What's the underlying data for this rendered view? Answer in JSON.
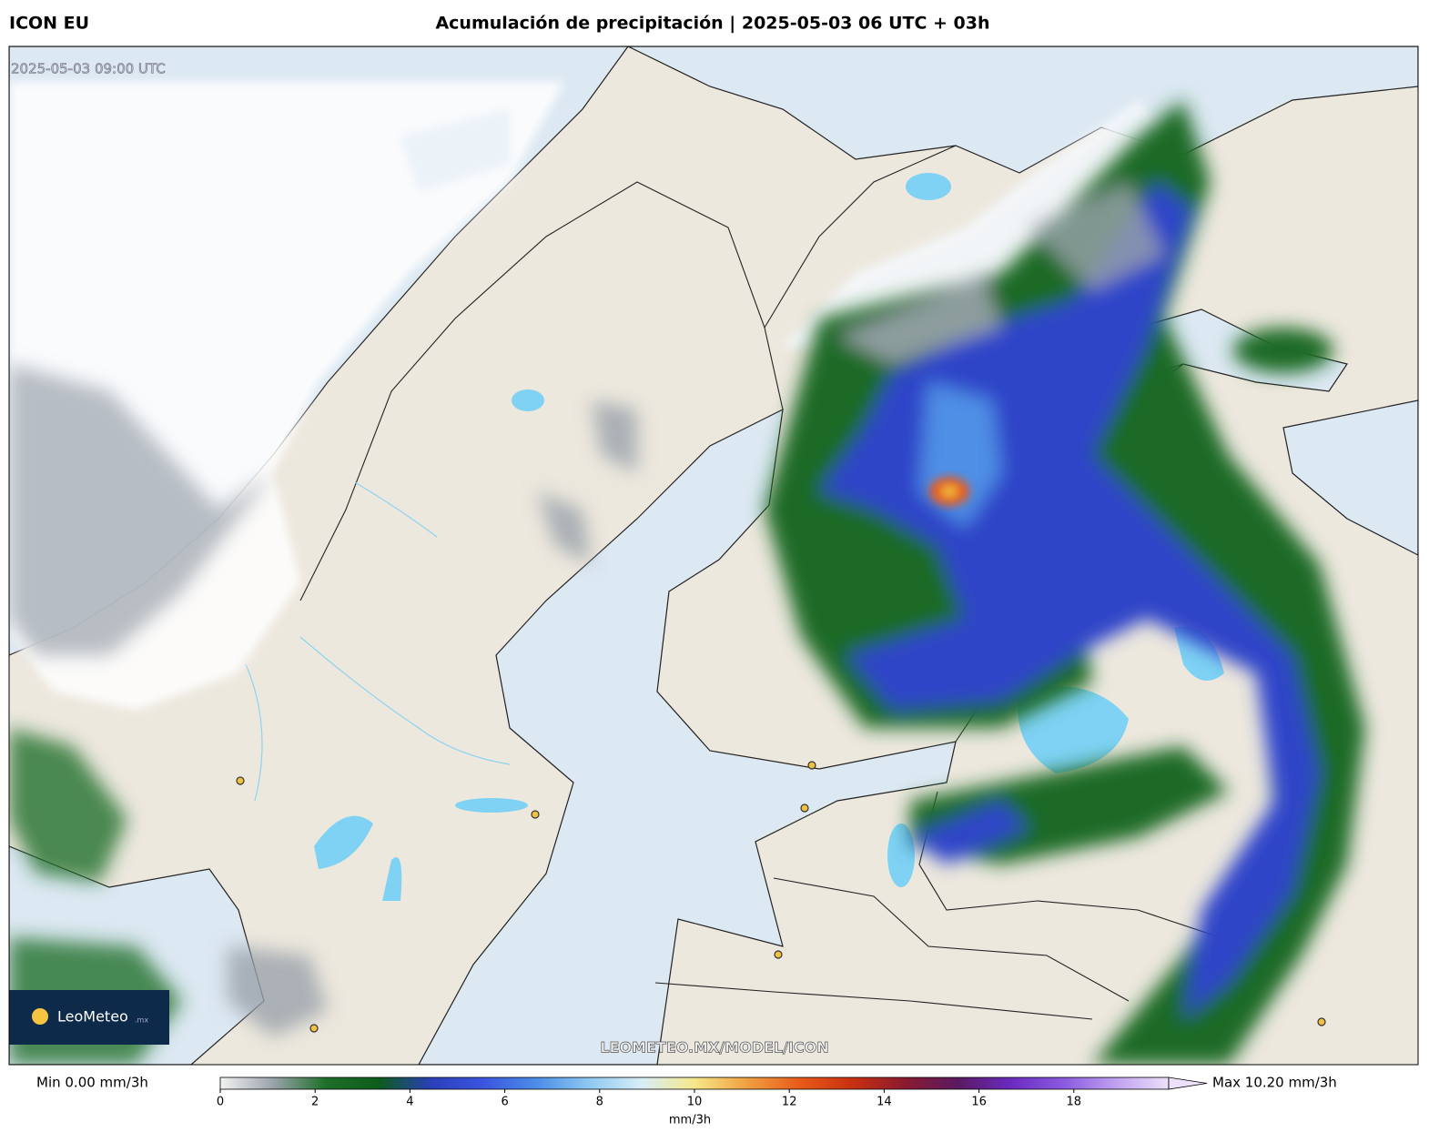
{
  "header": {
    "model": "ICON EU",
    "title": "Acumulación de precipitación | 2025-05-03 06 UTC + 03h"
  },
  "map": {
    "valid_time": "2025-05-03 09:00 UTC",
    "watermark": "LEOMETEO.MX/MODEL/ICON",
    "logo": "LeoMeteo",
    "logo_suffix": ".mx"
  },
  "colorbar": {
    "min_label": "Min 0.00 mm/3h",
    "max_label": "Max 10.20 mm/3h",
    "unit": "mm/3h",
    "range": [
      0,
      20
    ],
    "ticks": [
      0,
      2,
      4,
      6,
      8,
      10,
      12,
      14,
      16,
      18
    ],
    "colors": [
      "#f2f2f2",
      "#9aa3ab",
      "#1f6f2a",
      "#0d5c1a",
      "#2a3fb8",
      "#3b55e0",
      "#4c8de8",
      "#8ec8f0",
      "#d8eef8",
      "#f5e88a",
      "#f0a040",
      "#e85a1a",
      "#c83010",
      "#8a1a30",
      "#5a1a60",
      "#6a2ac0",
      "#8a5ae0",
      "#c0a0f0",
      "#ece0fa"
    ]
  }
}
